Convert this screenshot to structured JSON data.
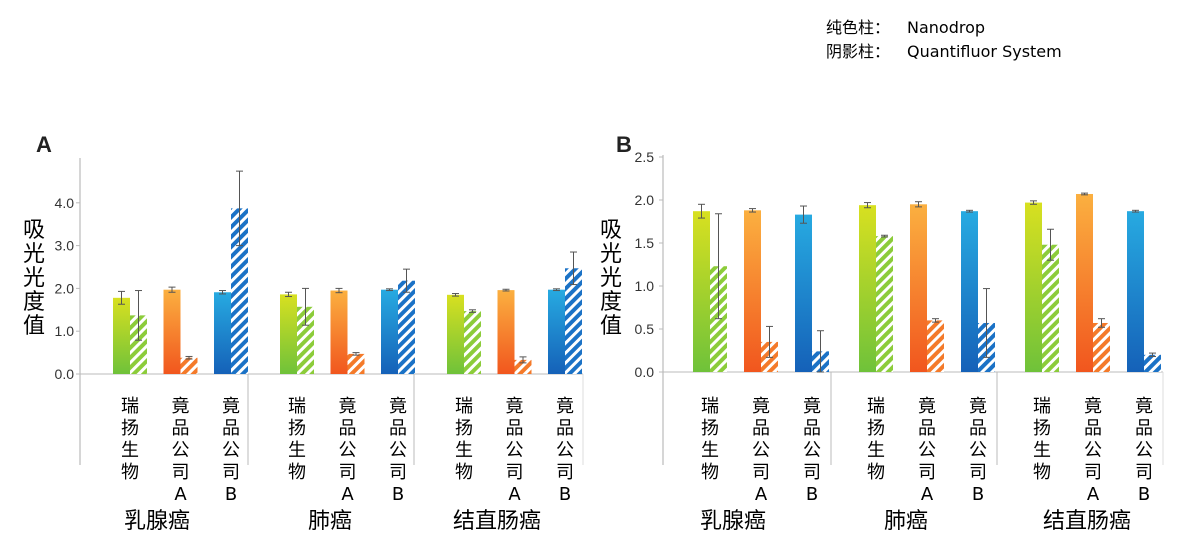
{
  "legend": {
    "solid_label": "纯色柱：",
    "solid_value": "Nanodrop",
    "hatched_label": "阴影柱：",
    "hatched_value": "Quantifluor System"
  },
  "chart_data": [
    {
      "panel": "A",
      "type": "bar",
      "ylabel": "吸光光度值",
      "ylim": [
        0,
        5
      ],
      "yticks": [
        "0.0",
        "1.0",
        "2.0",
        "3.0",
        "4.0"
      ],
      "groups": [
        "乳腺癌",
        "肺癌",
        "结直肠癌"
      ],
      "categories": [
        "瑞扬生物",
        "竟品公司A",
        "竟品公司B"
      ],
      "colors": {
        "瑞扬生物": "#9bd12e",
        "竟品公司A": "#f7872b",
        "竟品公司B": "#1a7fd0"
      },
      "series": [
        {
          "name": "Nanodrop",
          "style": "solid",
          "values": [
            [
              1.78,
              1.97,
              1.91
            ],
            [
              1.86,
              1.95,
              1.97
            ],
            [
              1.85,
              1.96,
              1.97
            ]
          ],
          "errors": [
            [
              0.15,
              0.06,
              0.04
            ],
            [
              0.05,
              0.05,
              0.02
            ],
            [
              0.03,
              0.02,
              0.02
            ]
          ]
        },
        {
          "name": "Quantifluor System",
          "style": "hatched",
          "values": [
            [
              1.37,
              0.38,
              3.87
            ],
            [
              1.57,
              0.47,
              2.18
            ],
            [
              1.47,
              0.33,
              2.47
            ]
          ],
          "errors": [
            [
              0.58,
              0.03,
              0.87
            ],
            [
              0.43,
              0.03,
              0.27
            ],
            [
              0.03,
              0.07,
              0.38
            ]
          ]
        }
      ]
    },
    {
      "panel": "B",
      "type": "bar",
      "ylabel": "吸光光度值",
      "ylim": [
        0,
        2.5
      ],
      "yticks": [
        "0.0",
        "0.5",
        "1.0",
        "1.5",
        "2.0",
        "2.5"
      ],
      "groups": [
        "乳腺癌",
        "肺癌",
        "结直肠癌"
      ],
      "categories": [
        "瑞扬生物",
        "竟品公司A",
        "竟品公司B"
      ],
      "colors": {
        "瑞扬生物": "#9bd12e",
        "竟品公司A": "#f7872b",
        "竟品公司B": "#1a7fd0"
      },
      "series": [
        {
          "name": "Nanodrop",
          "style": "solid",
          "values": [
            [
              1.87,
              1.88,
              1.83
            ],
            [
              1.94,
              1.95,
              1.87
            ],
            [
              1.97,
              2.07,
              1.87
            ]
          ],
          "errors": [
            [
              0.08,
              0.02,
              0.1
            ],
            [
              0.03,
              0.03,
              0.01
            ],
            [
              0.02,
              0.01,
              0.01
            ]
          ]
        },
        {
          "name": "Quantifluor System",
          "style": "hatched",
          "values": [
            [
              1.23,
              0.35,
              0.24
            ],
            [
              1.58,
              0.6,
              0.57
            ],
            [
              1.48,
              0.57,
              0.2
            ]
          ],
          "errors": [
            [
              0.61,
              0.18,
              0.24
            ],
            [
              0.01,
              0.02,
              0.4
            ],
            [
              0.18,
              0.05,
              0.02
            ]
          ]
        }
      ]
    }
  ]
}
